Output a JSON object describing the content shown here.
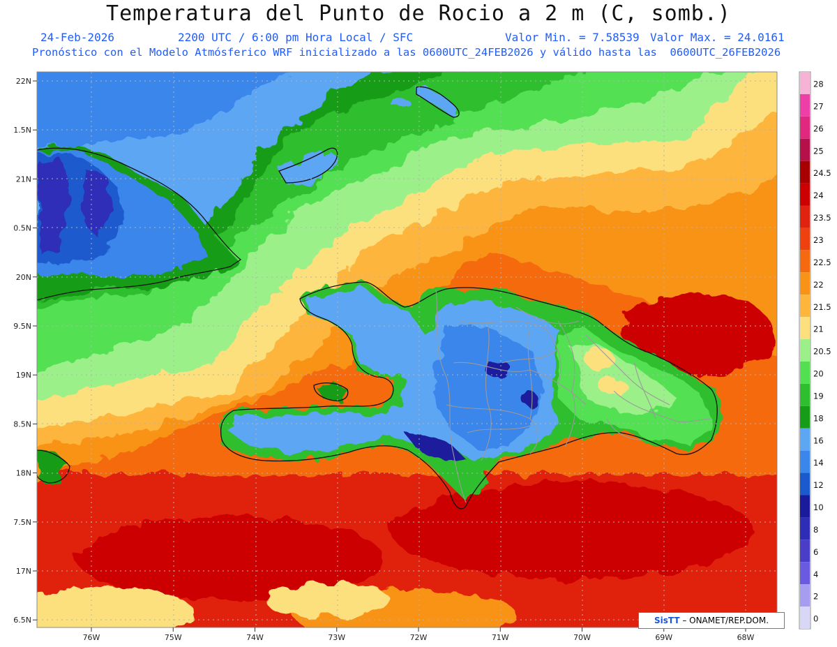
{
  "header": {
    "title": "Temperatura del Punto de Rocio a 2 m (C, somb.)",
    "date": "24-Feb-2026",
    "time": "2200 UTC / 6:00 pm Hora Local / SFC",
    "min_label": "Valor Min. = 7.58539",
    "max_label": "Valor Max. = 24.0161",
    "forecast_note": "Pronóstico con el Modelo Atmósferico WRF inicializado a las 0600UTC_24FEB2026 y válido hasta las  0600UTC_26FEB2026"
  },
  "map": {
    "lat_labels": [
      "22N",
      "1.5N",
      "21N",
      "0.5N",
      "20N",
      "9.5N",
      "19N",
      "8.5N",
      "18N",
      "7.5N",
      "17N",
      "6.5N"
    ],
    "lon_labels": [
      "76W",
      "75W",
      "74W",
      "73W",
      "72W",
      "71W",
      "70W",
      "69W",
      "68W"
    ]
  },
  "legend": {
    "ticks": [
      "28",
      "27",
      "26",
      "25",
      "24.5",
      "24",
      "23.5",
      "23",
      "22.5",
      "22",
      "21.5",
      "21",
      "20.5",
      "20",
      "19",
      "18",
      "16",
      "14",
      "12",
      "10",
      "8",
      "6",
      "4",
      "2",
      "0"
    ],
    "colors": [
      "#f7b3d6",
      "#ee3fa8",
      "#e0287f",
      "#b5104a",
      "#a80000",
      "#cc0000",
      "#e02210",
      "#ef4010",
      "#f56a10",
      "#f99318",
      "#fdb53c",
      "#fde07e",
      "#9cf08a",
      "#52e052",
      "#2fbe2f",
      "#169c16",
      "#5ca6f4",
      "#3b86ea",
      "#1a5acd",
      "#1a1a9c",
      "#2d2db8",
      "#4a3ec8",
      "#6a5ae0",
      "#a69cf0",
      "#d8d8f6"
    ]
  },
  "attribution": {
    "brand": "SisTT",
    "text": " – ONAMET/REP.DOM."
  }
}
